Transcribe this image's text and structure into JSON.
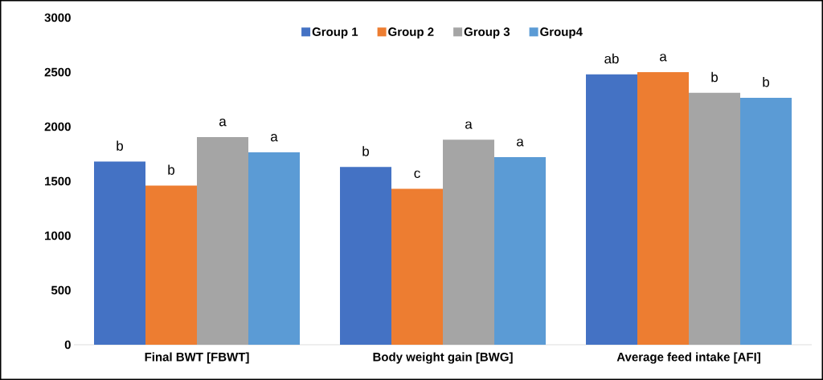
{
  "chart_data": {
    "type": "bar",
    "categories": [
      "Final BWT [FBWT]",
      "Body weight gain [BWG]",
      "Average feed intake [AFI]"
    ],
    "series": [
      {
        "name": "Group 1",
        "color": "#4472c4",
        "values": [
          1680,
          1630,
          2480
        ]
      },
      {
        "name": "Group 2",
        "color": "#ed7d31",
        "values": [
          1460,
          1430,
          2500
        ]
      },
      {
        "name": "Group 3",
        "color": "#a5a5a5",
        "values": [
          1905,
          1880,
          2310
        ]
      },
      {
        "name": "Group4",
        "color": "#5b9bd5",
        "values": [
          1765,
          1720,
          2265
        ]
      }
    ],
    "ylim": [
      0,
      3000
    ],
    "yticks": [
      0,
      500,
      1000,
      1500,
      2000,
      2500,
      3000
    ],
    "grid": false,
    "legend": "top",
    "annotations": [
      "b",
      "b",
      "a",
      "a",
      "b",
      "c",
      "a",
      "a",
      "ab",
      "a",
      "b",
      "b"
    ]
  }
}
